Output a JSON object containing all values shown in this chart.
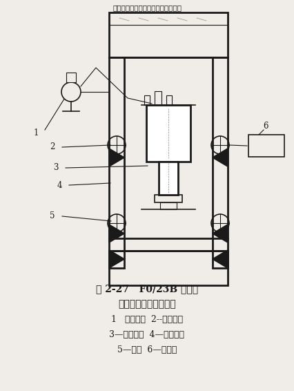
{
  "title_top": "該塔式起重機活動塔架液壓工作原理",
  "caption_line1": "图 2-27   F0/23B 塔式起",
  "caption_line2": "重机液压系统安装简图",
  "caption_line3": "1   液压泵站  2--活动塔架",
  "caption_line4": "3—顶升油缸  4—固定塔架",
  "caption_line5": "5—滚轮  6—操纵台",
  "bg_color": "#f0ede8",
  "line_color": "#1a1a1a",
  "label_color": "#1a1a1a"
}
